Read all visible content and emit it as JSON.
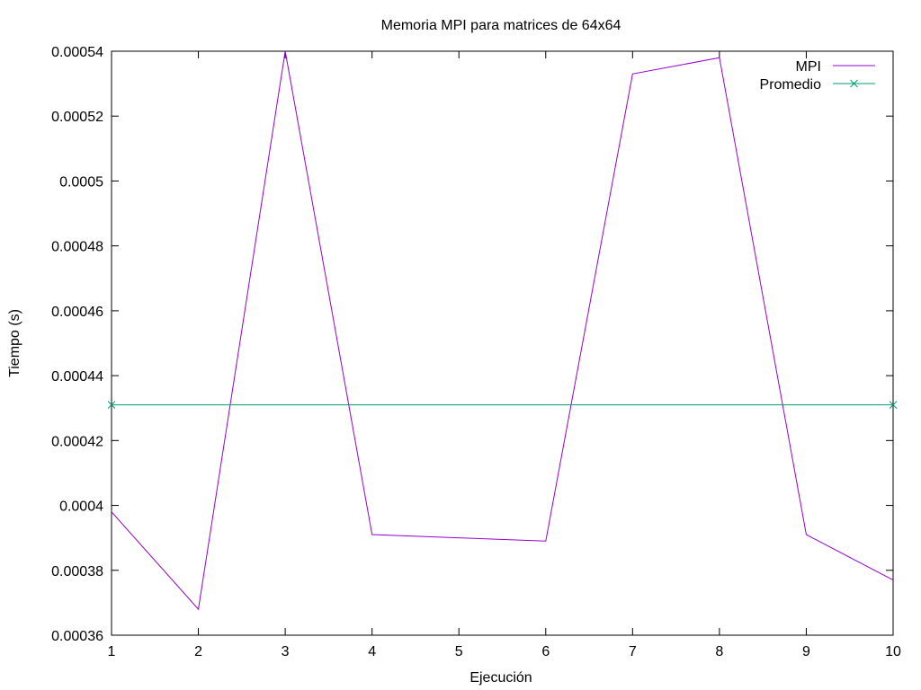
{
  "chart_data": {
    "type": "line",
    "title": "Memoria MPI para matrices de 64x64",
    "xlabel": "Ejecución",
    "ylabel": "Tiempo (s)",
    "xlim": [
      1,
      10
    ],
    "ylim": [
      0.00036,
      0.00054
    ],
    "x_ticks": [
      "1",
      "2",
      "3",
      "4",
      "5",
      "6",
      "7",
      "8",
      "9",
      "10"
    ],
    "y_ticks": [
      "0.00036",
      "0.00038",
      "0.0004",
      "0.00042",
      "0.00044",
      "0.00046",
      "0.00048",
      "0.0005",
      "0.00052",
      "0.00054"
    ],
    "grid": false,
    "legend_position": "top-right",
    "series": [
      {
        "name": "MPI",
        "color": "#9400d3",
        "marker": "none",
        "x": [
          1,
          2,
          3,
          4,
          5,
          6,
          7,
          8,
          9,
          10
        ],
        "y": [
          0.000398,
          0.000368,
          0.00054,
          0.000391,
          0.00039,
          0.000389,
          0.000533,
          0.000538,
          0.000391,
          0.000377
        ]
      },
      {
        "name": "Promedio",
        "color": "#009e73",
        "marker": "x",
        "x": [
          1,
          10
        ],
        "y": [
          0.000431,
          0.000431
        ]
      }
    ]
  }
}
